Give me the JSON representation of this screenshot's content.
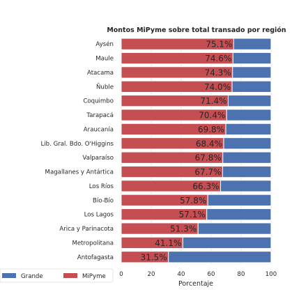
{
  "chart_data": {
    "type": "bar",
    "orientation": "horizontal",
    "stacked": true,
    "title": "Montos MiPyme sobre total transado por región",
    "xlabel": "Porcentaje",
    "ylabel": "",
    "xlim": [
      0,
      100
    ],
    "xticks": [
      "0",
      "20",
      "40",
      "60",
      "80",
      "100"
    ],
    "grid": true,
    "legend_position": "bottom-left",
    "categories": [
      "Aysén",
      "Maule",
      "Atacama",
      "Ñuble",
      "Coquimbo",
      "Tarapacá",
      "Araucanía",
      "Lib. Gral. Bdo. O'Higgins",
      "Valparaíso",
      "Magallanes y Antártica",
      "Los Ríos",
      "Bío-Bío",
      "Los Lagos",
      "Arica y Parinacota",
      "Metropolitana",
      "Antofagasta"
    ],
    "series": [
      {
        "name": "MiPyme",
        "color": "#c44e52",
        "values": [
          75.1,
          74.6,
          74.3,
          74.0,
          71.4,
          70.4,
          69.8,
          68.4,
          67.8,
          67.7,
          66.3,
          57.8,
          57.1,
          51.3,
          41.1,
          31.5
        ]
      },
      {
        "name": "Grande",
        "color": "#4c72b0",
        "values": [
          24.9,
          25.4,
          25.7,
          26.0,
          28.6,
          29.6,
          30.2,
          31.6,
          32.2,
          32.3,
          33.7,
          42.2,
          42.9,
          48.7,
          58.9,
          68.5
        ]
      }
    ],
    "data_labels": [
      "75.1%",
      "74.6%",
      "74.3%",
      "74.0%",
      "71.4%",
      "70.4%",
      "69.8%",
      "68.4%",
      "67.8%",
      "67.7%",
      "66.3%",
      "57.8%",
      "57.1%",
      "51.3%",
      "41.1%",
      "31.5%"
    ],
    "legend": [
      {
        "label": "Grande",
        "color": "#4c72b0"
      },
      {
        "label": "MiPyme",
        "color": "#c44e52"
      }
    ]
  }
}
